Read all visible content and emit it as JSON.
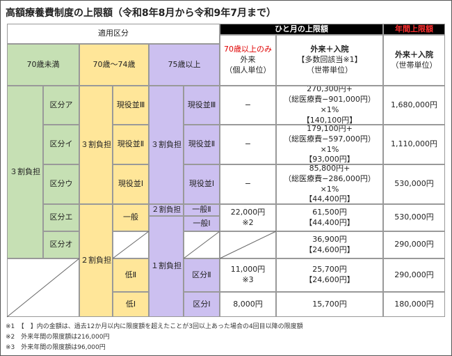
{
  "title": "高額療養費制度の上限額（令和8年8月から令和9年7月まで）",
  "header": {
    "category": "適用区分",
    "monthly_limit": "ひと月の上限額",
    "annual_limit": "年間上限額",
    "under70": "70歳未満",
    "age70_74": "70歳〜74歳",
    "age75plus": "75歳以上",
    "outpatient_only_note": "70歳以上のみ",
    "outpatient": "外来",
    "outpatient_unit": "（個人単位）",
    "combined": "外来＋入院",
    "combined_note": "【多数回該当※1】",
    "combined_unit": "（世帯単位）",
    "annual_combined": "外来＋入院",
    "annual_unit": "（世帯単位）"
  },
  "groups": {
    "burden3_under70": "３割負担",
    "burden3_70_74": "３割負担",
    "burden3_75": "３割負担",
    "burden2_70_74": "２割負担",
    "burden2_75": "２割負担",
    "burden1_75": "１割負担"
  },
  "rows": {
    "a": {
      "cat": "区分ア",
      "sub70": "現役並Ⅲ",
      "sub75": "現役並Ⅲ",
      "outpatient": "−",
      "limit1": "270,300円+",
      "limit2": "（総医療費−901,000円）×1%",
      "limit3": "【140,100円】",
      "annual": "1,680,000円"
    },
    "i": {
      "cat": "区分イ",
      "sub70": "現役並Ⅱ",
      "sub75": "現役並Ⅱ",
      "outpatient": "−",
      "limit1": "179,100円+",
      "limit2": "（総医療費−597,000円）×1%",
      "limit3": "【93,000円】",
      "annual": "1,110,000円"
    },
    "u": {
      "cat": "区分ウ",
      "sub70": "現役並Ⅰ",
      "sub75": "現役並Ⅰ",
      "outpatient": "−",
      "limit1": "85,800円+",
      "limit2": "（総医療費−286,000円）×1%",
      "limit3": "【44,400円】",
      "annual": "530,000円"
    },
    "e": {
      "cat": "区分エ",
      "sub70": "一般",
      "sub75a": "一般Ⅱ",
      "sub75b": "一般Ⅰ",
      "outpatient1": "22,000円",
      "outpatient2": "※2",
      "limit1": "61,500円",
      "limit2": "【44,400円】",
      "annual": "530,000円"
    },
    "o": {
      "cat": "区分オ",
      "limit1": "36,900円",
      "limit2": "【24,600円】",
      "annual": "290,000円"
    },
    "low2": {
      "sub70": "低Ⅱ",
      "sub75": "区分Ⅱ",
      "outpatient1": "11,000円",
      "outpatient2": "※3",
      "limit1": "25,700円",
      "limit2": "【24,600円】",
      "annual": "290,000円"
    },
    "low1": {
      "sub70": "低Ⅰ",
      "sub75": "区分Ⅰ",
      "outpatient": "8,000円",
      "limit": "15,700円",
      "annual": "180,000円"
    }
  },
  "notes": [
    "※1　【　】内の金額は、過去12か月以内に限度額を超えたことが3回以上あった場合の4回目以降の限度額",
    "※2　外来年間の限度額は216,000円",
    "※3　外来年間の限度額は96,000円"
  ]
}
